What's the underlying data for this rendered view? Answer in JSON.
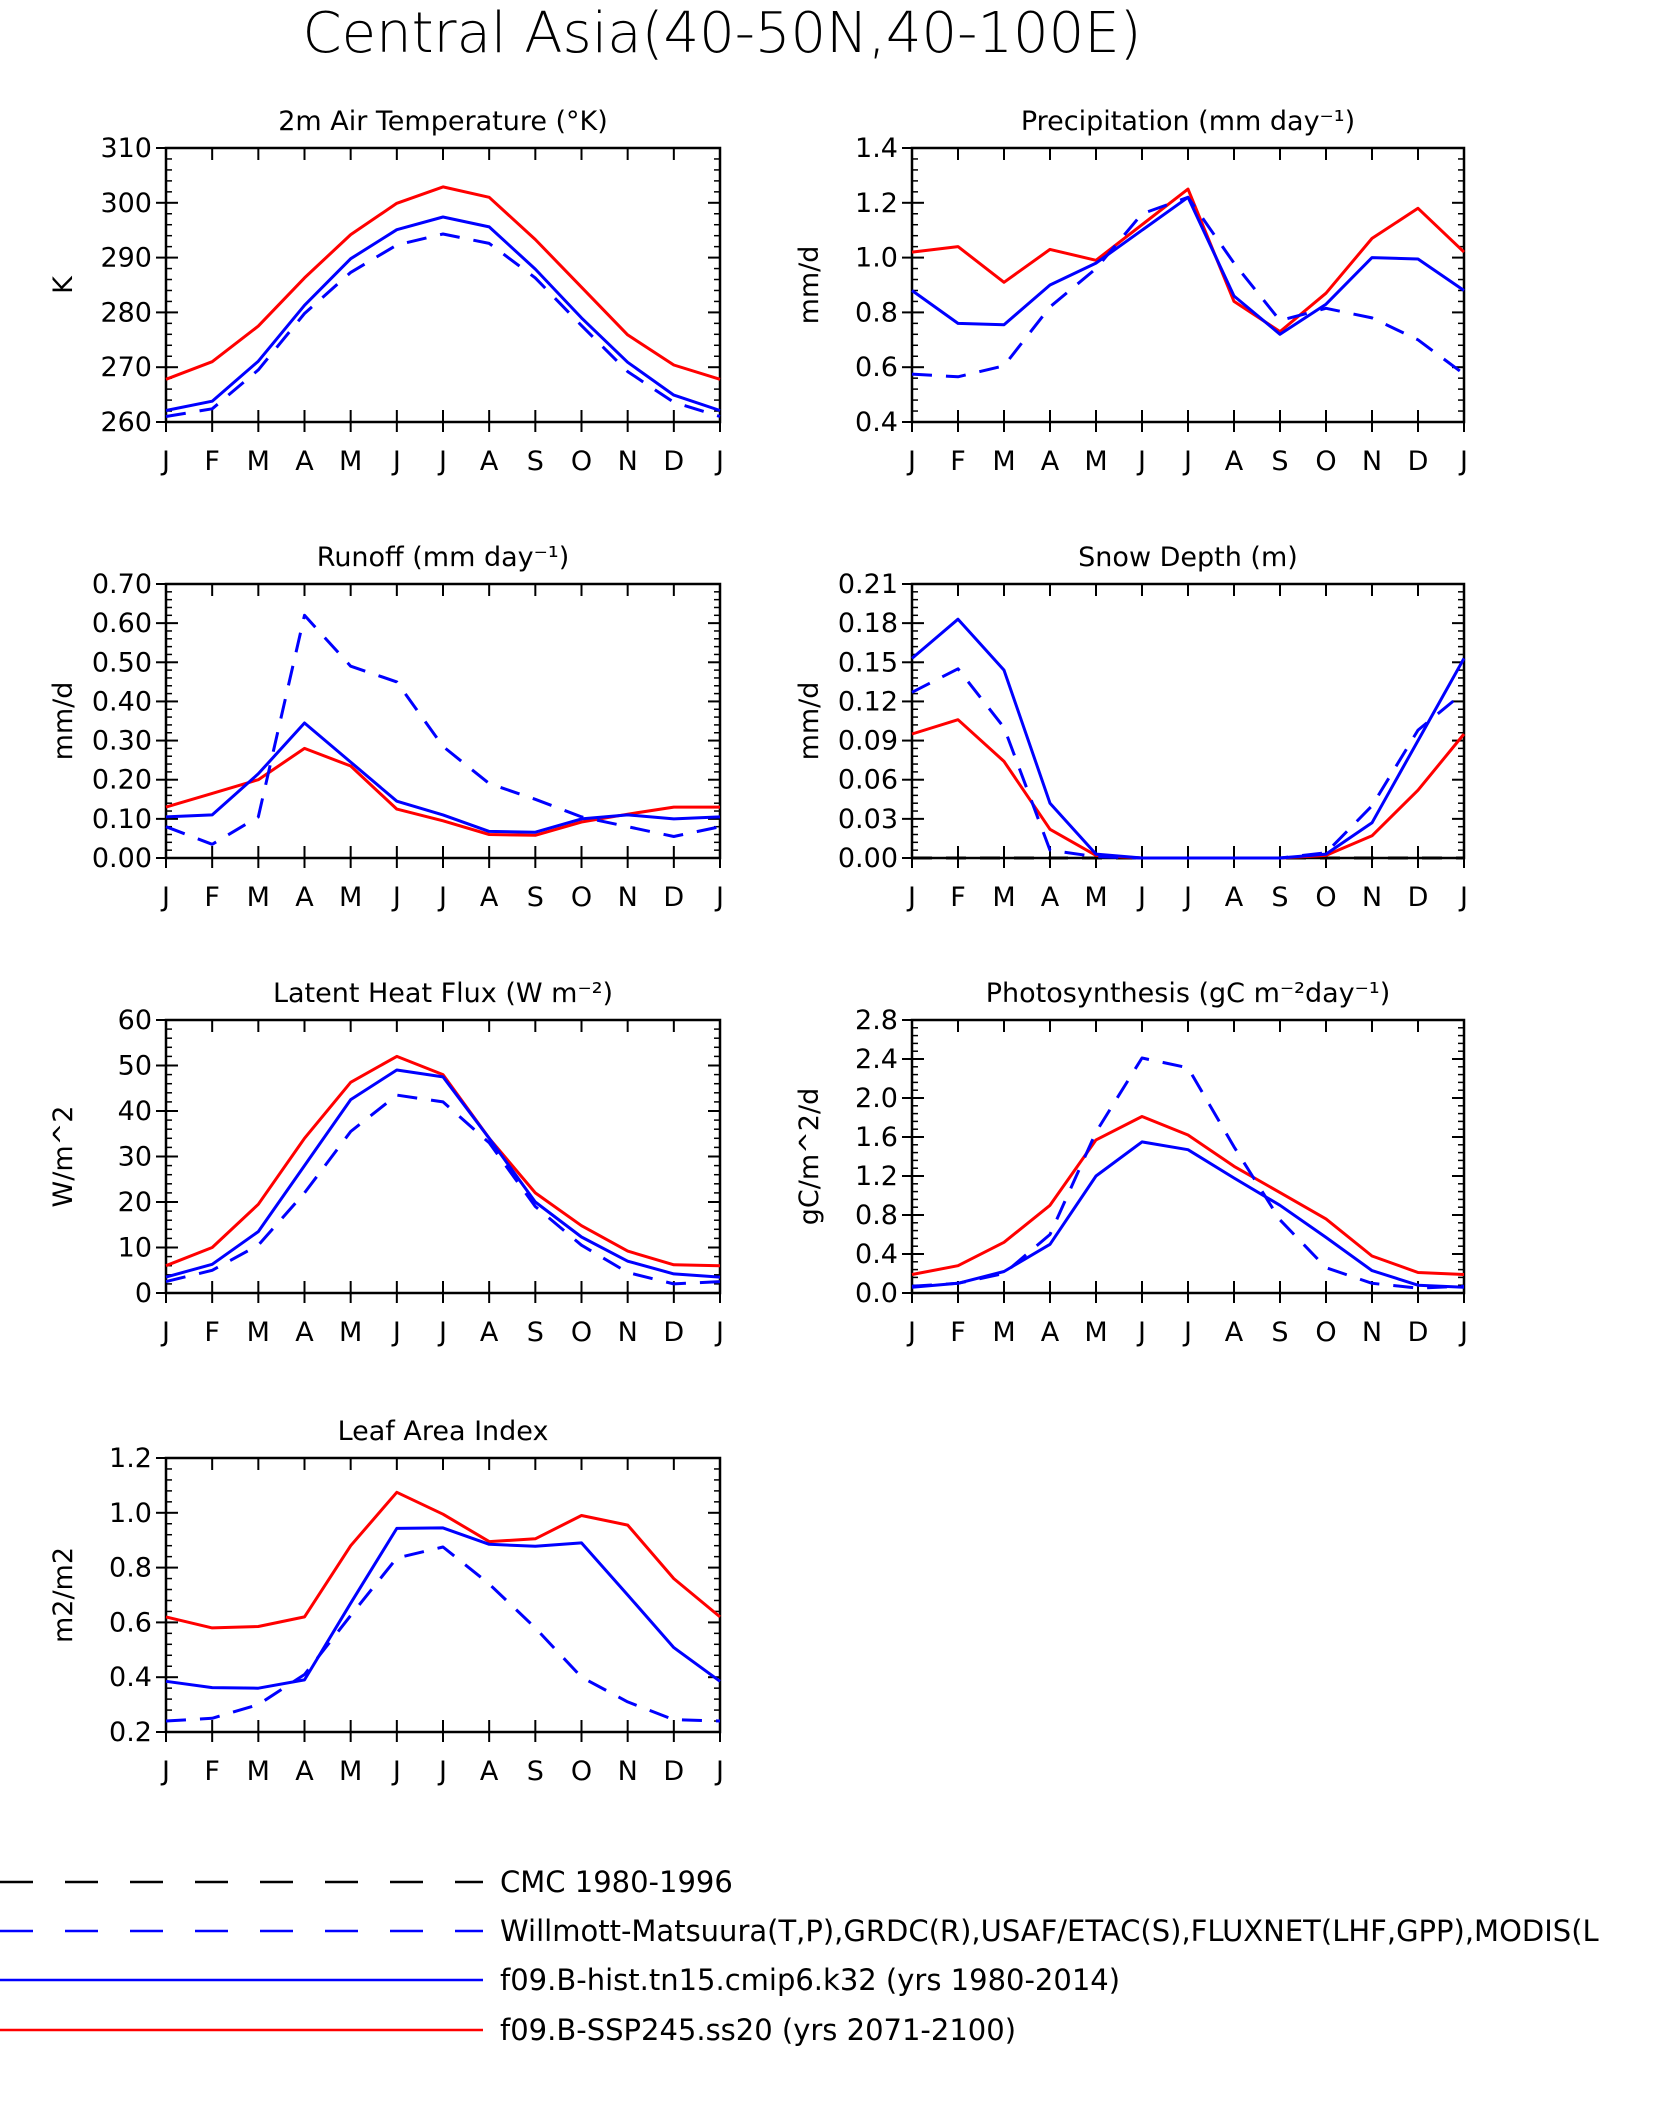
{
  "page_title": "Central Asia(40-50N,40-100E)",
  "months": [
    "J",
    "F",
    "M",
    "A",
    "M",
    "J",
    "J",
    "A",
    "S",
    "O",
    "N",
    "D",
    "J"
  ],
  "legend": [
    {
      "label": "CMC 1980-1996",
      "color": "#000000",
      "dash": true
    },
    {
      "label": "Willmott-Matsuura(T,P),GRDC(R),USAF/ETAC(S),FLUXNET(LHF,GPP),MODIS(L",
      "color": "#0000ff",
      "dash": true
    },
    {
      "label": "f09.B-hist.tn15.cmip6.k32 (yrs 1980-2014)",
      "color": "#0000ff",
      "dash": false
    },
    {
      "label": "f09.B-SSP245.ss20 (yrs 2071-2100)",
      "color": "#ff0000",
      "dash": false
    }
  ],
  "chart_data": [
    {
      "type": "line",
      "title": "2m Air Temperature (°K)",
      "ylabel": "K",
      "ylim": [
        260,
        310
      ],
      "yticks": [
        "260",
        "270",
        "280",
        "290",
        "300",
        "310"
      ],
      "x": [
        "J",
        "F",
        "M",
        "A",
        "M",
        "J",
        "J",
        "A",
        "S",
        "O",
        "N",
        "D",
        "J"
      ],
      "series": [
        {
          "name": "f09.B-SSP245.ss20 (yrs 2071-2100)",
          "color": "#ff0000",
          "dash": false,
          "values": [
            267.8,
            271.0,
            277.5,
            286.3,
            294.2,
            299.9,
            302.9,
            301.0,
            293.3,
            284.6,
            275.9,
            270.4,
            267.8
          ]
        },
        {
          "name": "f09.B-hist.tn15.cmip6.k32 (yrs 1980-2014)",
          "color": "#0000ff",
          "dash": false,
          "values": [
            262.1,
            263.8,
            271.1,
            281.3,
            289.8,
            295.1,
            297.4,
            295.6,
            287.9,
            279.0,
            270.9,
            264.9,
            262.1
          ]
        },
        {
          "name": "Willmott-Matsuura(T,P),GRDC(R),USAF/ETAC(S),FLUXNET(LHF,GPP),MODIS(L",
          "color": "#0000ff",
          "dash": true,
          "values": [
            261.0,
            262.4,
            269.5,
            279.8,
            287.3,
            292.3,
            294.3,
            292.6,
            286.3,
            277.6,
            269.2,
            263.6,
            261.0
          ]
        }
      ]
    },
    {
      "type": "line",
      "title": "Precipitation (mm day⁻¹)",
      "ylabel": "mm/d",
      "ylim": [
        0.4,
        1.4
      ],
      "yticks": [
        "0.4",
        "0.6",
        "0.8",
        "1.0",
        "1.2",
        "1.4"
      ],
      "x": [
        "J",
        "F",
        "M",
        "A",
        "M",
        "J",
        "J",
        "A",
        "S",
        "O",
        "N",
        "D",
        "J"
      ],
      "series": [
        {
          "name": "f09.B-SSP245.ss20 (yrs 2071-2100)",
          "color": "#ff0000",
          "dash": false,
          "values": [
            1.02,
            1.04,
            0.91,
            1.03,
            0.99,
            1.12,
            1.25,
            0.84,
            0.73,
            0.87,
            1.07,
            1.18,
            1.02
          ]
        },
        {
          "name": "f09.B-hist.tn15.cmip6.k32 (yrs 1980-2014)",
          "color": "#0000ff",
          "dash": false,
          "values": [
            0.88,
            0.76,
            0.755,
            0.9,
            0.98,
            1.1,
            1.22,
            0.86,
            0.72,
            0.83,
            1.0,
            0.995,
            0.88
          ]
        },
        {
          "name": "Willmott-Matsuura(T,P),GRDC(R),USAF/ETAC(S),FLUXNET(LHF,GPP),MODIS(L",
          "color": "#0000ff",
          "dash": true,
          "values": [
            0.575,
            0.565,
            0.605,
            0.82,
            0.96,
            1.16,
            1.22,
            0.98,
            0.77,
            0.815,
            0.78,
            0.7,
            0.575
          ]
        }
      ]
    },
    {
      "type": "line",
      "title": "Runoff (mm day⁻¹)",
      "ylabel": "mm/d",
      "ylim": [
        0,
        0.7
      ],
      "yticks": [
        "0.00",
        "0.10",
        "0.20",
        "0.30",
        "0.40",
        "0.50",
        "0.60",
        "0.70"
      ],
      "x": [
        "J",
        "F",
        "M",
        "A",
        "M",
        "J",
        "J",
        "A",
        "S",
        "O",
        "N",
        "D",
        "J"
      ],
      "series": [
        {
          "name": "f09.B-SSP245.ss20 (yrs 2071-2100)",
          "color": "#ff0000",
          "dash": false,
          "values": [
            0.13,
            0.165,
            0.2,
            0.28,
            0.235,
            0.125,
            0.095,
            0.06,
            0.058,
            0.092,
            0.112,
            0.13,
            0.13
          ]
        },
        {
          "name": "f09.B-hist.tn15.cmip6.k32 (yrs 1980-2014)",
          "color": "#0000ff",
          "dash": false,
          "values": [
            0.105,
            0.11,
            0.215,
            0.345,
            0.245,
            0.145,
            0.11,
            0.068,
            0.066,
            0.1,
            0.11,
            0.1,
            0.105
          ]
        },
        {
          "name": "Willmott-Matsuura(T,P),GRDC(R),USAF/ETAC(S),FLUXNET(LHF,GPP),MODIS(L",
          "color": "#0000ff",
          "dash": true,
          "values": [
            0.08,
            0.035,
            0.105,
            0.62,
            0.49,
            0.45,
            0.285,
            0.19,
            0.15,
            0.105,
            0.08,
            0.055,
            0.08
          ]
        }
      ]
    },
    {
      "type": "line",
      "title": "Snow Depth (m)",
      "ylabel": "mm/d",
      "ylim": [
        0,
        0.21
      ],
      "yticks": [
        "0.00",
        "0.03",
        "0.06",
        "0.09",
        "0.12",
        "0.15",
        "0.18",
        "0.21"
      ],
      "x": [
        "J",
        "F",
        "M",
        "A",
        "M",
        "J",
        "J",
        "A",
        "S",
        "O",
        "N",
        "D",
        "J"
      ],
      "series": [
        {
          "name": "CMC 1980-1996",
          "color": "#000000",
          "dash": true,
          "values": [
            0,
            0,
            0,
            0,
            0,
            0,
            0,
            0,
            0,
            0,
            0,
            0,
            0
          ]
        },
        {
          "name": "f09.B-SSP245.ss20 (yrs 2071-2100)",
          "color": "#ff0000",
          "dash": false,
          "values": [
            0.095,
            0.106,
            0.074,
            0.022,
            0.002,
            0,
            0,
            0,
            0,
            0.002,
            0.017,
            0.052,
            0.095
          ]
        },
        {
          "name": "f09.B-hist.tn15.cmip6.k32 (yrs 1980-2014)",
          "color": "#0000ff",
          "dash": false,
          "values": [
            0.153,
            0.183,
            0.144,
            0.042,
            0.003,
            0,
            0,
            0,
            0,
            0.003,
            0.027,
            0.09,
            0.153
          ]
        },
        {
          "name": "Willmott-Matsuura(T,P),GRDC(R),USAF/ETAC(S),FLUXNET(LHF,GPP),MODIS(L",
          "color": "#0000ff",
          "dash": true,
          "values": [
            0.127,
            0.145,
            0.1,
            0.006,
            0.001,
            0,
            0,
            0,
            0,
            0.004,
            0.04,
            0.098,
            0.127
          ]
        }
      ]
    },
    {
      "type": "line",
      "title": "Latent Heat Flux (W m⁻²)",
      "ylabel": "W/m^2",
      "ylim": [
        0,
        60
      ],
      "yticks": [
        "0",
        "10",
        "20",
        "30",
        "40",
        "50",
        "60"
      ],
      "x": [
        "J",
        "F",
        "M",
        "A",
        "M",
        "J",
        "J",
        "A",
        "S",
        "O",
        "N",
        "D",
        "J"
      ],
      "series": [
        {
          "name": "f09.B-SSP245.ss20 (yrs 2071-2100)",
          "color": "#ff0000",
          "dash": false,
          "values": [
            6,
            10,
            19.5,
            34,
            46.3,
            52,
            48,
            34,
            22,
            14.8,
            9.2,
            6.2,
            6
          ]
        },
        {
          "name": "f09.B-hist.tn15.cmip6.k32 (yrs 1980-2014)",
          "color": "#0000ff",
          "dash": false,
          "values": [
            3.5,
            6.3,
            13.5,
            28,
            42.5,
            49,
            47.5,
            34,
            20,
            12.3,
            7,
            4.2,
            3.5
          ]
        },
        {
          "name": "Willmott-Matsuura(T,P),GRDC(R),USAF/ETAC(S),FLUXNET(LHF,GPP),MODIS(L",
          "color": "#0000ff",
          "dash": true,
          "values": [
            2.5,
            5,
            10.5,
            22,
            35.5,
            43.5,
            42,
            33,
            19,
            10.5,
            4.5,
            2,
            2.5
          ]
        }
      ]
    },
    {
      "type": "line",
      "title": "Photosynthesis (gC m⁻²day⁻¹)",
      "ylabel": "gC/m^2/d",
      "ylim": [
        0,
        2.8
      ],
      "yticks": [
        "0.0",
        "0.4",
        "0.8",
        "1.2",
        "1.6",
        "2.0",
        "2.4",
        "2.8"
      ],
      "x": [
        "J",
        "F",
        "M",
        "A",
        "M",
        "J",
        "J",
        "A",
        "S",
        "O",
        "N",
        "D",
        "J"
      ],
      "series": [
        {
          "name": "f09.B-SSP245.ss20 (yrs 2071-2100)",
          "color": "#ff0000",
          "dash": false,
          "values": [
            0.19,
            0.28,
            0.52,
            0.9,
            1.57,
            1.81,
            1.62,
            1.3,
            1.03,
            0.76,
            0.38,
            0.21,
            0.19
          ]
        },
        {
          "name": "f09.B-hist.tn15.cmip6.k32 (yrs 1980-2014)",
          "color": "#0000ff",
          "dash": false,
          "values": [
            0.06,
            0.1,
            0.22,
            0.5,
            1.2,
            1.55,
            1.47,
            1.18,
            0.9,
            0.57,
            0.23,
            0.08,
            0.06
          ]
        },
        {
          "name": "Willmott-Matsuura(T,P),GRDC(R),USAF/ETAC(S),FLUXNET(LHF,GPP),MODIS(L",
          "color": "#0000ff",
          "dash": true,
          "values": [
            0.07,
            0.1,
            0.2,
            0.6,
            1.65,
            2.41,
            2.31,
            1.5,
            0.75,
            0.26,
            0.1,
            0.05,
            0.07
          ]
        }
      ]
    },
    {
      "type": "line",
      "title": "Leaf Area Index",
      "ylabel": "m2/m2",
      "ylim": [
        0.2,
        1.2
      ],
      "yticks": [
        "0.2",
        "0.4",
        "0.6",
        "0.8",
        "1.0",
        "1.2"
      ],
      "x": [
        "J",
        "F",
        "M",
        "A",
        "M",
        "J",
        "J",
        "A",
        "S",
        "O",
        "N",
        "D",
        "J"
      ],
      "series": [
        {
          "name": "f09.B-SSP245.ss20 (yrs 2071-2100)",
          "color": "#ff0000",
          "dash": false,
          "values": [
            0.62,
            0.58,
            0.585,
            0.62,
            0.88,
            1.075,
            0.995,
            0.895,
            0.905,
            0.99,
            0.955,
            0.76,
            0.62
          ]
        },
        {
          "name": "f09.B-hist.tn15.cmip6.k32 (yrs 1980-2014)",
          "color": "#0000ff",
          "dash": false,
          "values": [
            0.385,
            0.362,
            0.36,
            0.39,
            0.67,
            0.943,
            0.945,
            0.885,
            0.878,
            0.89,
            0.7,
            0.508,
            0.385
          ]
        },
        {
          "name": "Willmott-Matsuura(T,P),GRDC(R),USAF/ETAC(S),FLUXNET(LHF,GPP),MODIS(L",
          "color": "#0000ff",
          "dash": true,
          "values": [
            0.24,
            0.25,
            0.3,
            0.41,
            0.625,
            0.835,
            0.875,
            0.74,
            0.58,
            0.4,
            0.31,
            0.245,
            0.24
          ]
        }
      ]
    }
  ]
}
